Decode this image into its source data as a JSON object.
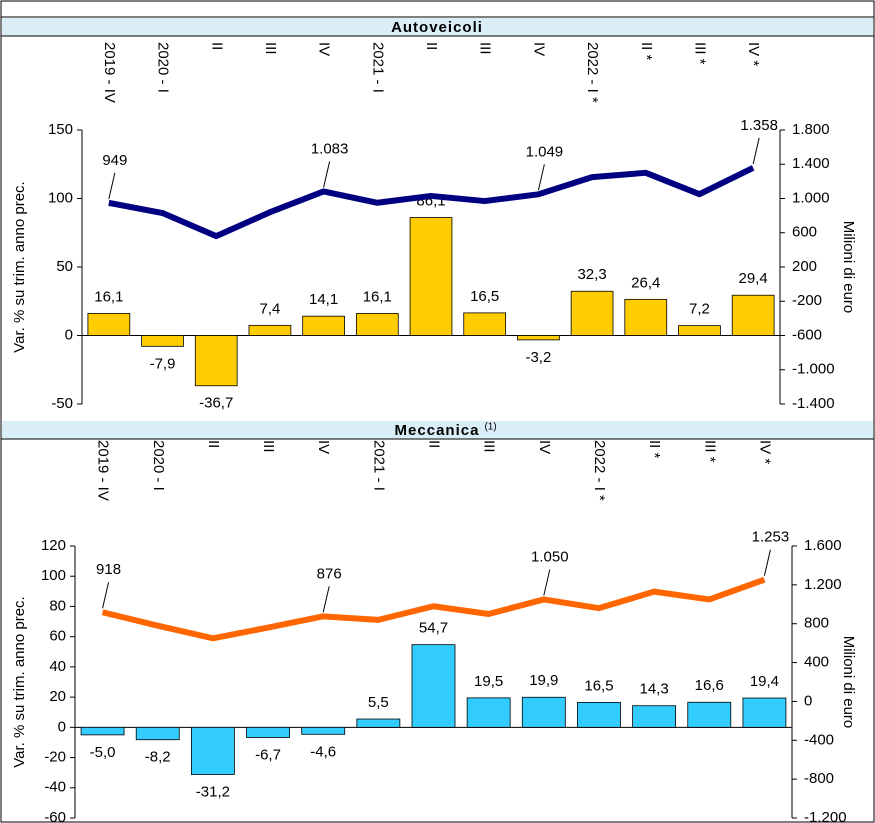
{
  "chart_data": [
    {
      "type": "bar_line",
      "title": "Autoveicoli",
      "categories": [
        "2019 - IV",
        "2020 - I",
        "II",
        "III",
        "IV",
        "2021 - I",
        "II",
        "III",
        "IV",
        "2022 - I *",
        "II *",
        "III *",
        "IV *"
      ],
      "ylabel": "Var. % su trim. anno prec.",
      "y2label": "Milioni di euro",
      "ylim": [
        -50,
        150
      ],
      "yticks": [
        150,
        100,
        50,
        0,
        -50
      ],
      "y2lim": [
        -1400,
        1800
      ],
      "y2ticks": [
        {
          "value": 1800,
          "label": "1.800"
        },
        {
          "value": 1400,
          "label": "1.400"
        },
        {
          "value": 1000,
          "label": "1.000"
        },
        600,
        200,
        -200,
        -600,
        {
          "value": -1000,
          "label": "-1.000"
        },
        {
          "value": -1400,
          "label": "-1.400"
        }
      ],
      "series": [
        {
          "type": "bar",
          "color": "#ffcc00",
          "values": [
            16.1,
            -7.9,
            -36.7,
            7.4,
            14.1,
            16.1,
            86.1,
            16.5,
            -3.2,
            32.3,
            26.4,
            7.2,
            29.4
          ],
          "value_labels": [
            "16,1",
            "-7,9",
            "-36,7",
            "7,4",
            "14,1",
            "16,1",
            "86,1",
            "16,5",
            "-3,2",
            "32,3",
            "26,4",
            "7,2",
            "29,4"
          ]
        },
        {
          "type": "line",
          "axis": "y2",
          "color": "#000080",
          "values": [
            949,
            830,
            560,
            840,
            1083,
            950,
            1030,
            970,
            1049,
            1250,
            1300,
            1050,
            1358
          ],
          "value_labels": [
            "949",
            null,
            null,
            null,
            "1.083",
            null,
            null,
            null,
            "1.049",
            null,
            null,
            null,
            "1.358"
          ]
        }
      ]
    },
    {
      "type": "bar_line",
      "title": "Meccanica",
      "title_note": "(1)",
      "categories": [
        "2019 - IV",
        "2020 - I",
        "II",
        "III",
        "IV",
        "2021 - I",
        "II",
        "III",
        "IV",
        "2022 - I *",
        "II *",
        "III *",
        "IV *"
      ],
      "ylabel": "Var. % su trim. anno prec.",
      "y2label": "Milioni di euro",
      "ylim": [
        -60,
        120
      ],
      "yticks": [
        120,
        100,
        80,
        60,
        40,
        20,
        0,
        -20,
        -40,
        -60
      ],
      "y2lim": [
        -1200,
        1600
      ],
      "y2ticks": [
        {
          "value": 1600,
          "label": "1.600"
        },
        {
          "value": 1200,
          "label": "1.200"
        },
        800,
        400,
        0,
        -400,
        -800,
        {
          "value": -1200,
          "label": "-1.200"
        }
      ],
      "series": [
        {
          "type": "bar",
          "color": "#33ccff",
          "values": [
            -5.0,
            -8.2,
            -31.2,
            -6.7,
            -4.6,
            5.5,
            54.7,
            19.5,
            19.9,
            16.5,
            14.3,
            16.6,
            19.4
          ],
          "value_labels": [
            "-5,0",
            "-8,2",
            "-31,2",
            "-6,7",
            "-4,6",
            "5,5",
            "54,7",
            "19,5",
            "19,9",
            "16,5",
            "14,3",
            "16,6",
            "19,4"
          ]
        },
        {
          "type": "line",
          "axis": "y2",
          "color": "#ff6600",
          "values": [
            918,
            780,
            650,
            760,
            876,
            840,
            980,
            900,
            1050,
            960,
            1130,
            1050,
            1253
          ],
          "value_labels": [
            "918",
            null,
            null,
            null,
            "876",
            null,
            null,
            null,
            "1.050",
            null,
            null,
            null,
            "1.253"
          ]
        }
      ]
    }
  ]
}
